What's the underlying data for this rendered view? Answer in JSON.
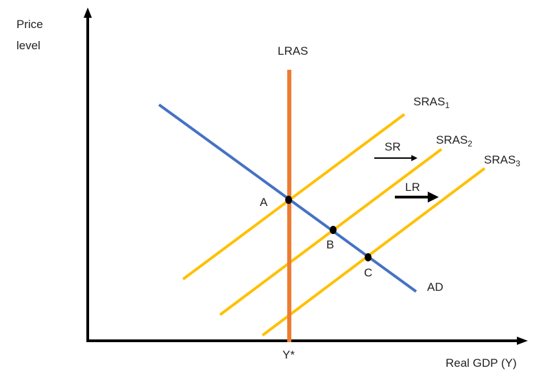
{
  "axes": {
    "y_label_line1": "Price",
    "y_label_line2": "level",
    "x_label": "Real GDP (Y)",
    "x_tick": "Y*"
  },
  "curves": {
    "lras": "LRAS",
    "sras1_main": "SRAS",
    "sras1_sub": "1",
    "sras2_main": "SRAS",
    "sras2_sub": "2",
    "sras3_main": "SRAS",
    "sras3_sub": "3",
    "ad": "AD"
  },
  "points": {
    "a": "A",
    "b": "B",
    "c": "C"
  },
  "shifts": {
    "sr": "SR",
    "lr": "LR"
  },
  "colors": {
    "axis": "#000000",
    "ad": "#4472C4",
    "lras": "#ED7D31",
    "sras": "#FFC000",
    "point": "#000000"
  }
}
